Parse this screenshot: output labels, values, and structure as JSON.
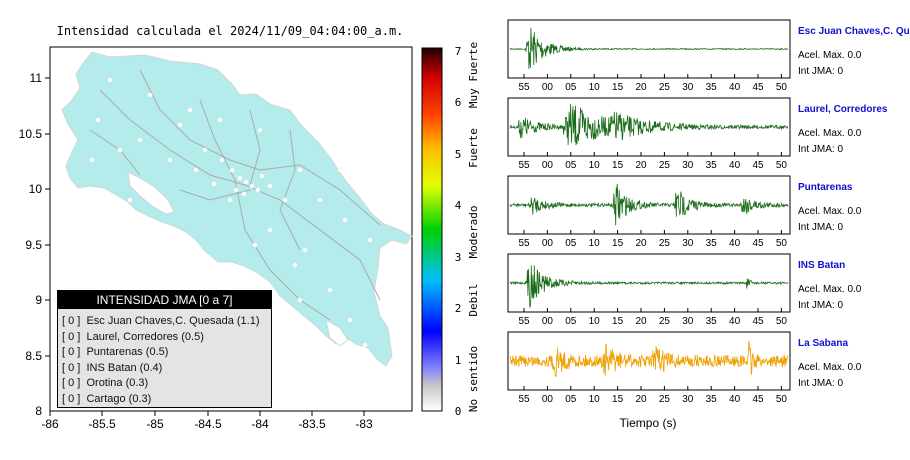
{
  "map": {
    "title": "Intensidad calculada el 2024/11/09_04:04:00_a.m.",
    "xticks": [
      "-86",
      "-85.5",
      "-85",
      "-84.5",
      "-84",
      "-83.5",
      "-83"
    ],
    "yticks": [
      "11",
      "10.5",
      "10",
      "9.5",
      "9",
      "8.5",
      "8"
    ],
    "land_color": "#b4ecec"
  },
  "colorbar": {
    "ticks": [
      "0",
      "1",
      "2",
      "3",
      "4",
      "5",
      "6",
      "7"
    ],
    "zones": [
      "No sentido",
      "Debil",
      "Moderado",
      "Fuerte",
      "Muy Fuerte"
    ]
  },
  "legend": {
    "title": "INTENSIDAD JMA [0 a 7]",
    "items": [
      {
        "bracket": "[ 0 ]",
        "label": "Esc Juan Chaves,C. Quesada (1.1)"
      },
      {
        "bracket": "[ 0 ]",
        "label": "Laurel, Corredores (0.5)"
      },
      {
        "bracket": "[ 0 ]",
        "label": "Puntarenas (0.5)"
      },
      {
        "bracket": "[ 0 ]",
        "label": "INS Batan (0.4)"
      },
      {
        "bracket": "[ 0 ]",
        "label": "Orotina (0.3)"
      },
      {
        "bracket": "[ 0 ]",
        "label": "Cartago (0.3)"
      }
    ]
  },
  "chart_data": {
    "type": "line",
    "xlabel": "Tiempo (s)",
    "xticks": [
      "55",
      "00",
      "05",
      "10",
      "15",
      "20",
      "25",
      "30",
      "35",
      "40",
      "45",
      "50"
    ],
    "series": [
      {
        "name": "Esc Juan Chaves,C. Qu",
        "accel": "Acel. Max. 0.0",
        "int": "Int JMA: 0",
        "color": "#1a6b1a",
        "bursts": [
          [
            0.07,
            1.0,
            0.05
          ]
        ],
        "noise": 0.02
      },
      {
        "name": "Laurel, Corredores",
        "accel": "Acel. Max. 0.0",
        "int": "Int JMA: 0",
        "color": "#1a6b1a",
        "bursts": [
          [
            0.04,
            0.45,
            0.05
          ],
          [
            0.22,
            0.9,
            0.12
          ],
          [
            0.38,
            0.35,
            0.1
          ]
        ],
        "noise": 0.06
      },
      {
        "name": "Puntarenas",
        "accel": "Acel. Max. 0.0",
        "int": "Int JMA: 0",
        "color": "#1a6b1a",
        "bursts": [
          [
            0.08,
            0.35,
            0.04
          ],
          [
            0.38,
            0.9,
            0.04
          ],
          [
            0.6,
            0.7,
            0.04
          ],
          [
            0.84,
            0.4,
            0.04
          ]
        ],
        "noise": 0.06
      },
      {
        "name": "INS Batan",
        "accel": "Acel. Max. 0.0",
        "int": "Int JMA: 0",
        "color": "#1a6b1a",
        "bursts": [
          [
            0.07,
            0.95,
            0.05
          ],
          [
            0.85,
            0.3,
            0.01
          ]
        ],
        "noise": 0.04
      },
      {
        "name": "La Sabana",
        "accel": "Acel. Max. 0.0",
        "int": "Int JMA: 0",
        "color": "#f0a000",
        "bursts": [
          [
            0.16,
            0.55,
            0.03
          ],
          [
            0.34,
            0.5,
            0.04
          ],
          [
            0.52,
            0.45,
            0.04
          ],
          [
            0.86,
            1.0,
            0.01
          ]
        ],
        "noise": 0.22
      }
    ]
  }
}
